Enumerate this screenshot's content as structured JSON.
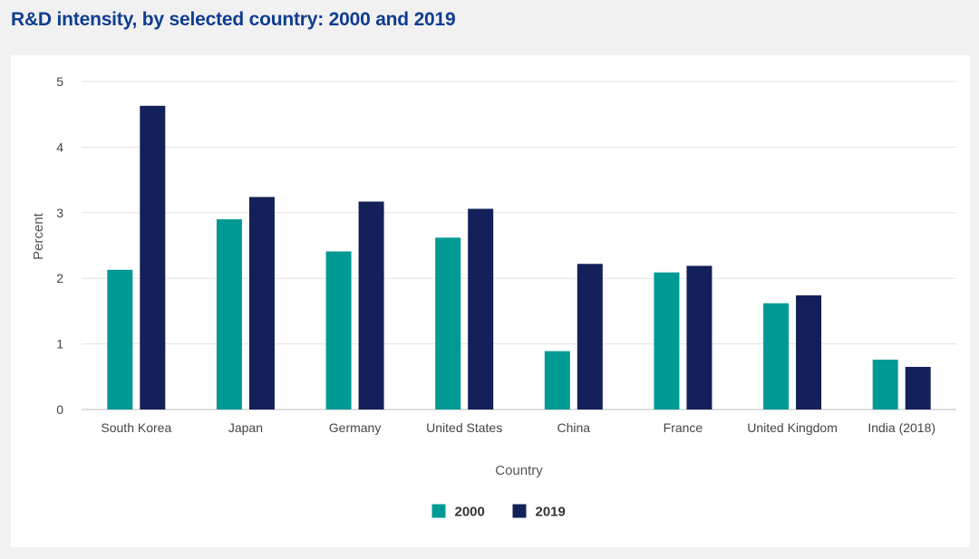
{
  "title": "R&D intensity, by selected country: 2000 and 2019",
  "chart_data": {
    "type": "bar",
    "title": "R&D intensity, by selected country: 2000 and 2019",
    "xlabel": "Country",
    "ylabel": "Percent",
    "ylim": [
      0,
      5
    ],
    "yticks": [
      0,
      1,
      2,
      3,
      4,
      5
    ],
    "grid": true,
    "legend_position": "bottom",
    "categories": [
      "South Korea",
      "Japan",
      "Germany",
      "United States",
      "China",
      "France",
      "United Kingdom",
      "India (2018)"
    ],
    "series": [
      {
        "name": "2000",
        "color": "#009a94",
        "values": [
          2.13,
          2.9,
          2.41,
          2.62,
          0.89,
          2.09,
          1.62,
          0.76
        ]
      },
      {
        "name": "2019",
        "color": "#132059",
        "values": [
          4.63,
          3.24,
          3.17,
          3.06,
          2.22,
          2.19,
          1.74,
          0.65
        ]
      }
    ]
  }
}
